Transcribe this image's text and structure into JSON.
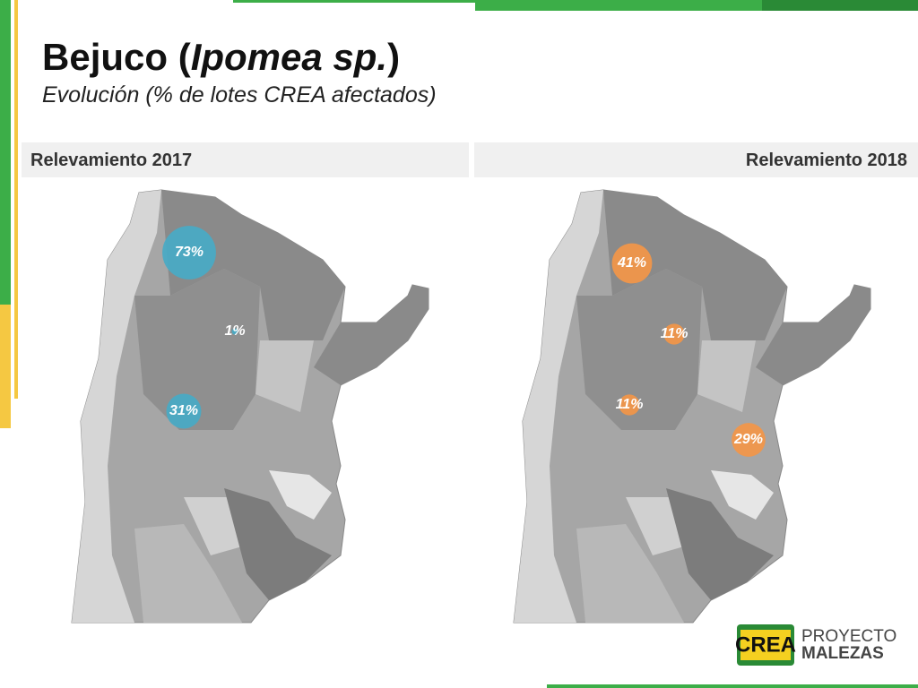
{
  "header": {
    "title_start": "Bejuco (",
    "title_italic": "Ipomea sp.",
    "title_end": ")",
    "subtitle": "Evolución (% de lotes CREA afectados)"
  },
  "maps": [
    {
      "label": "Relevamiento 2017",
      "color": "#4aaac4",
      "markers": [
        {
          "value": 73,
          "label": "73%"
        },
        {
          "value": 1,
          "label": "1%"
        },
        {
          "value": 31,
          "label": "31%"
        }
      ]
    },
    {
      "label": "Relevamiento 2018",
      "color": "#f0964a",
      "markers": [
        {
          "value": 41,
          "label": "41%"
        },
        {
          "value": 11,
          "label": "11%"
        },
        {
          "value": 11,
          "label": "11%"
        },
        {
          "value": 29,
          "label": "29%"
        }
      ]
    }
  ],
  "logo": {
    "badge": "CREA",
    "line1": "PROYECTO",
    "line2": "MALEZAS"
  }
}
